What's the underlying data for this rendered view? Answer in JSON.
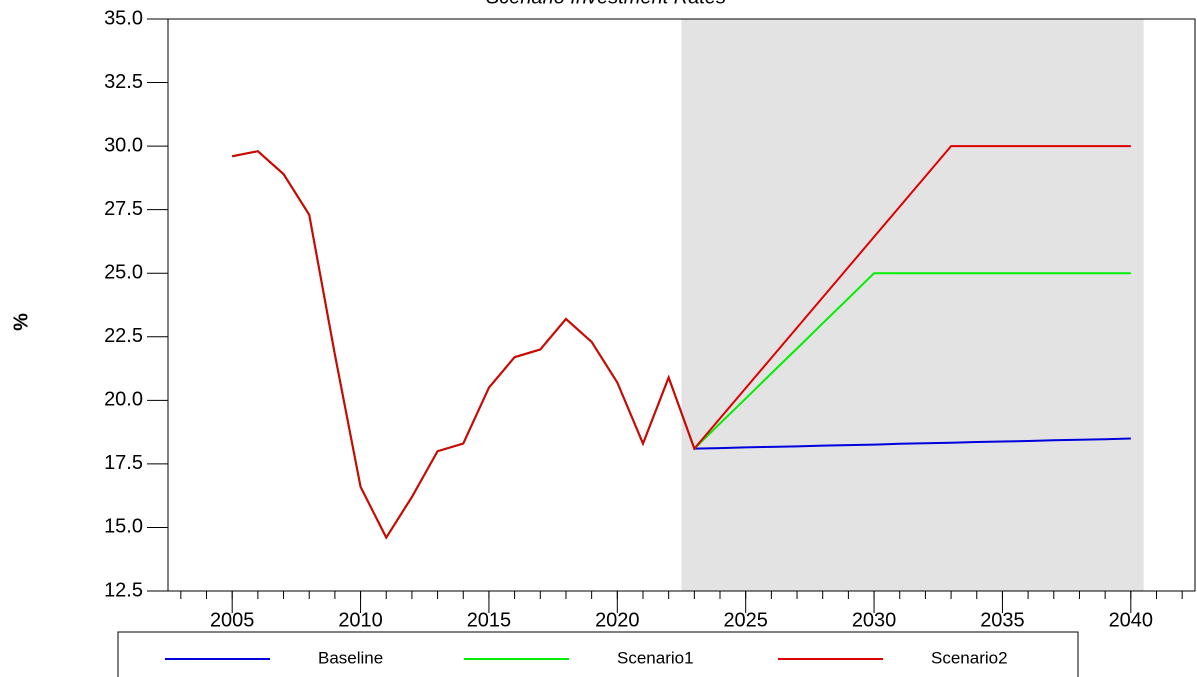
{
  "chart_data": {
    "type": "line",
    "title": "Scenario Investment Rates",
    "y_label": "%",
    "x": [
      2005,
      2006,
      2007,
      2008,
      2009,
      2010,
      2011,
      2012,
      2013,
      2014,
      2015,
      2016,
      2017,
      2018,
      2019,
      2020,
      2021,
      2022,
      2023,
      2024,
      2025,
      2026,
      2027,
      2028,
      2029,
      2030,
      2031,
      2032,
      2033,
      2034,
      2035,
      2036,
      2037,
      2038,
      2039,
      2040
    ],
    "series": [
      {
        "name": "Baseline",
        "color": "#0000dd",
        "values": [
          29.6,
          29.8,
          28.9,
          27.3,
          21.8,
          16.6,
          14.6,
          16.2,
          18.0,
          18.3,
          20.5,
          21.7,
          22.0,
          23.2,
          22.3,
          20.7,
          18.3,
          20.9,
          18.1,
          18.12,
          18.15,
          18.17,
          18.19,
          18.22,
          18.24,
          18.26,
          18.29,
          18.31,
          18.33,
          18.36,
          18.38,
          18.4,
          18.43,
          18.45,
          18.47,
          18.5
        ]
      },
      {
        "name": "Scenario1",
        "color": "#00ee00",
        "values": [
          29.6,
          29.8,
          28.9,
          27.3,
          21.8,
          16.6,
          14.6,
          16.2,
          18.0,
          18.3,
          20.5,
          21.7,
          22.0,
          23.2,
          22.3,
          20.7,
          18.3,
          20.9,
          18.1,
          19.09,
          20.07,
          21.06,
          22.04,
          23.03,
          24.01,
          25.0,
          25.0,
          25.0,
          25.0,
          25.0,
          25.0,
          25.0,
          25.0,
          25.0,
          25.0,
          25.0
        ]
      },
      {
        "name": "Scenario2",
        "color": "#dd0000",
        "values": [
          29.6,
          29.8,
          28.9,
          27.3,
          21.8,
          16.6,
          14.6,
          16.2,
          18.0,
          18.3,
          20.5,
          21.7,
          22.0,
          23.2,
          22.3,
          20.7,
          18.3,
          20.9,
          18.1,
          19.29,
          20.48,
          21.67,
          22.86,
          24.05,
          25.24,
          26.43,
          27.62,
          28.81,
          30.0,
          30.0,
          30.0,
          30.0,
          30.0,
          30.0,
          30.0,
          30.0
        ]
      }
    ],
    "xlim": [
      2002.5,
      2042.5
    ],
    "xticks": [
      2005,
      2010,
      2015,
      2020,
      2025,
      2030,
      2035,
      2040
    ],
    "ylim": [
      12.5,
      35
    ],
    "yticks": [
      {
        "value": 12.5,
        "label": "12.5"
      },
      {
        "value": 15,
        "label": "15.0"
      },
      {
        "value": 17.5,
        "label": "17.5"
      },
      {
        "value": 20,
        "label": "20.0"
      },
      {
        "value": 22.5,
        "label": "22.5"
      },
      {
        "value": 25,
        "label": "25.0"
      },
      {
        "value": 27.5,
        "label": "27.5"
      },
      {
        "value": 30,
        "label": "30.0"
      },
      {
        "value": 32.5,
        "label": "32.5"
      },
      {
        "value": 35,
        "label": "35.0"
      }
    ],
    "shade": [
      2022.5,
      2040.5
    ],
    "shade_color": "#e3e3e3",
    "minor_x_step": 1
  }
}
